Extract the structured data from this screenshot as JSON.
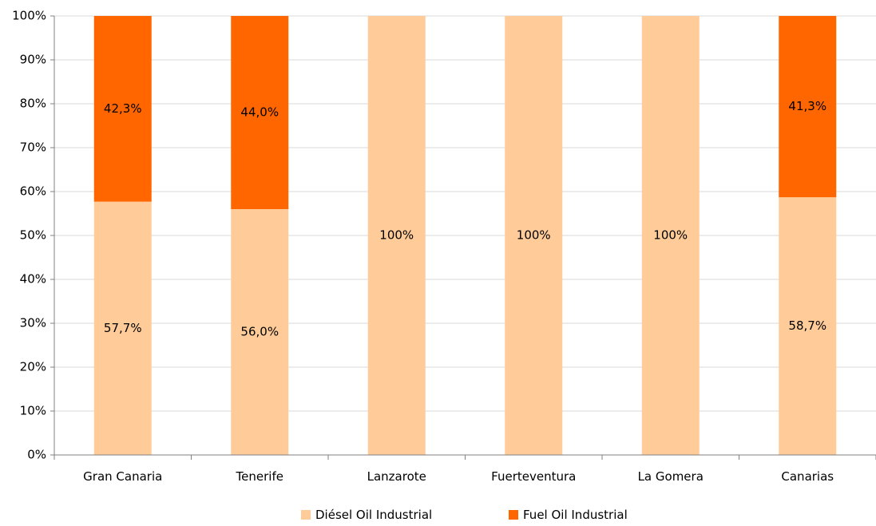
{
  "chart_data": {
    "type": "bar",
    "stacked": true,
    "categories": [
      "Gran Canaria",
      "Tenerife",
      "Lanzarote",
      "Fuerteventura",
      "La Gomera",
      "Canarias"
    ],
    "series": [
      {
        "name": "Diésel Oil Industrial",
        "color": "#FFCC99",
        "values": [
          57.7,
          56.0,
          100,
          100,
          100,
          58.7
        ],
        "labels": [
          "57,7%",
          "56,0%",
          "100%",
          "100%",
          "100%",
          "58,7%"
        ]
      },
      {
        "name": "Fuel Oil Industrial",
        "color": "#FF6600",
        "values": [
          42.3,
          44.0,
          0,
          0,
          0,
          41.3
        ],
        "labels": [
          "42,3%",
          "44,0%",
          "",
          "",
          "",
          "41,3%"
        ]
      }
    ],
    "ylim": [
      0,
      100
    ],
    "yticks": [
      0,
      10,
      20,
      30,
      40,
      50,
      60,
      70,
      80,
      90,
      100
    ],
    "ytick_labels": [
      "0%",
      "10%",
      "20%",
      "30%",
      "40%",
      "50%",
      "60%",
      "70%",
      "80%",
      "90%",
      "100%"
    ],
    "grid": true,
    "legend_position": "bottom"
  }
}
